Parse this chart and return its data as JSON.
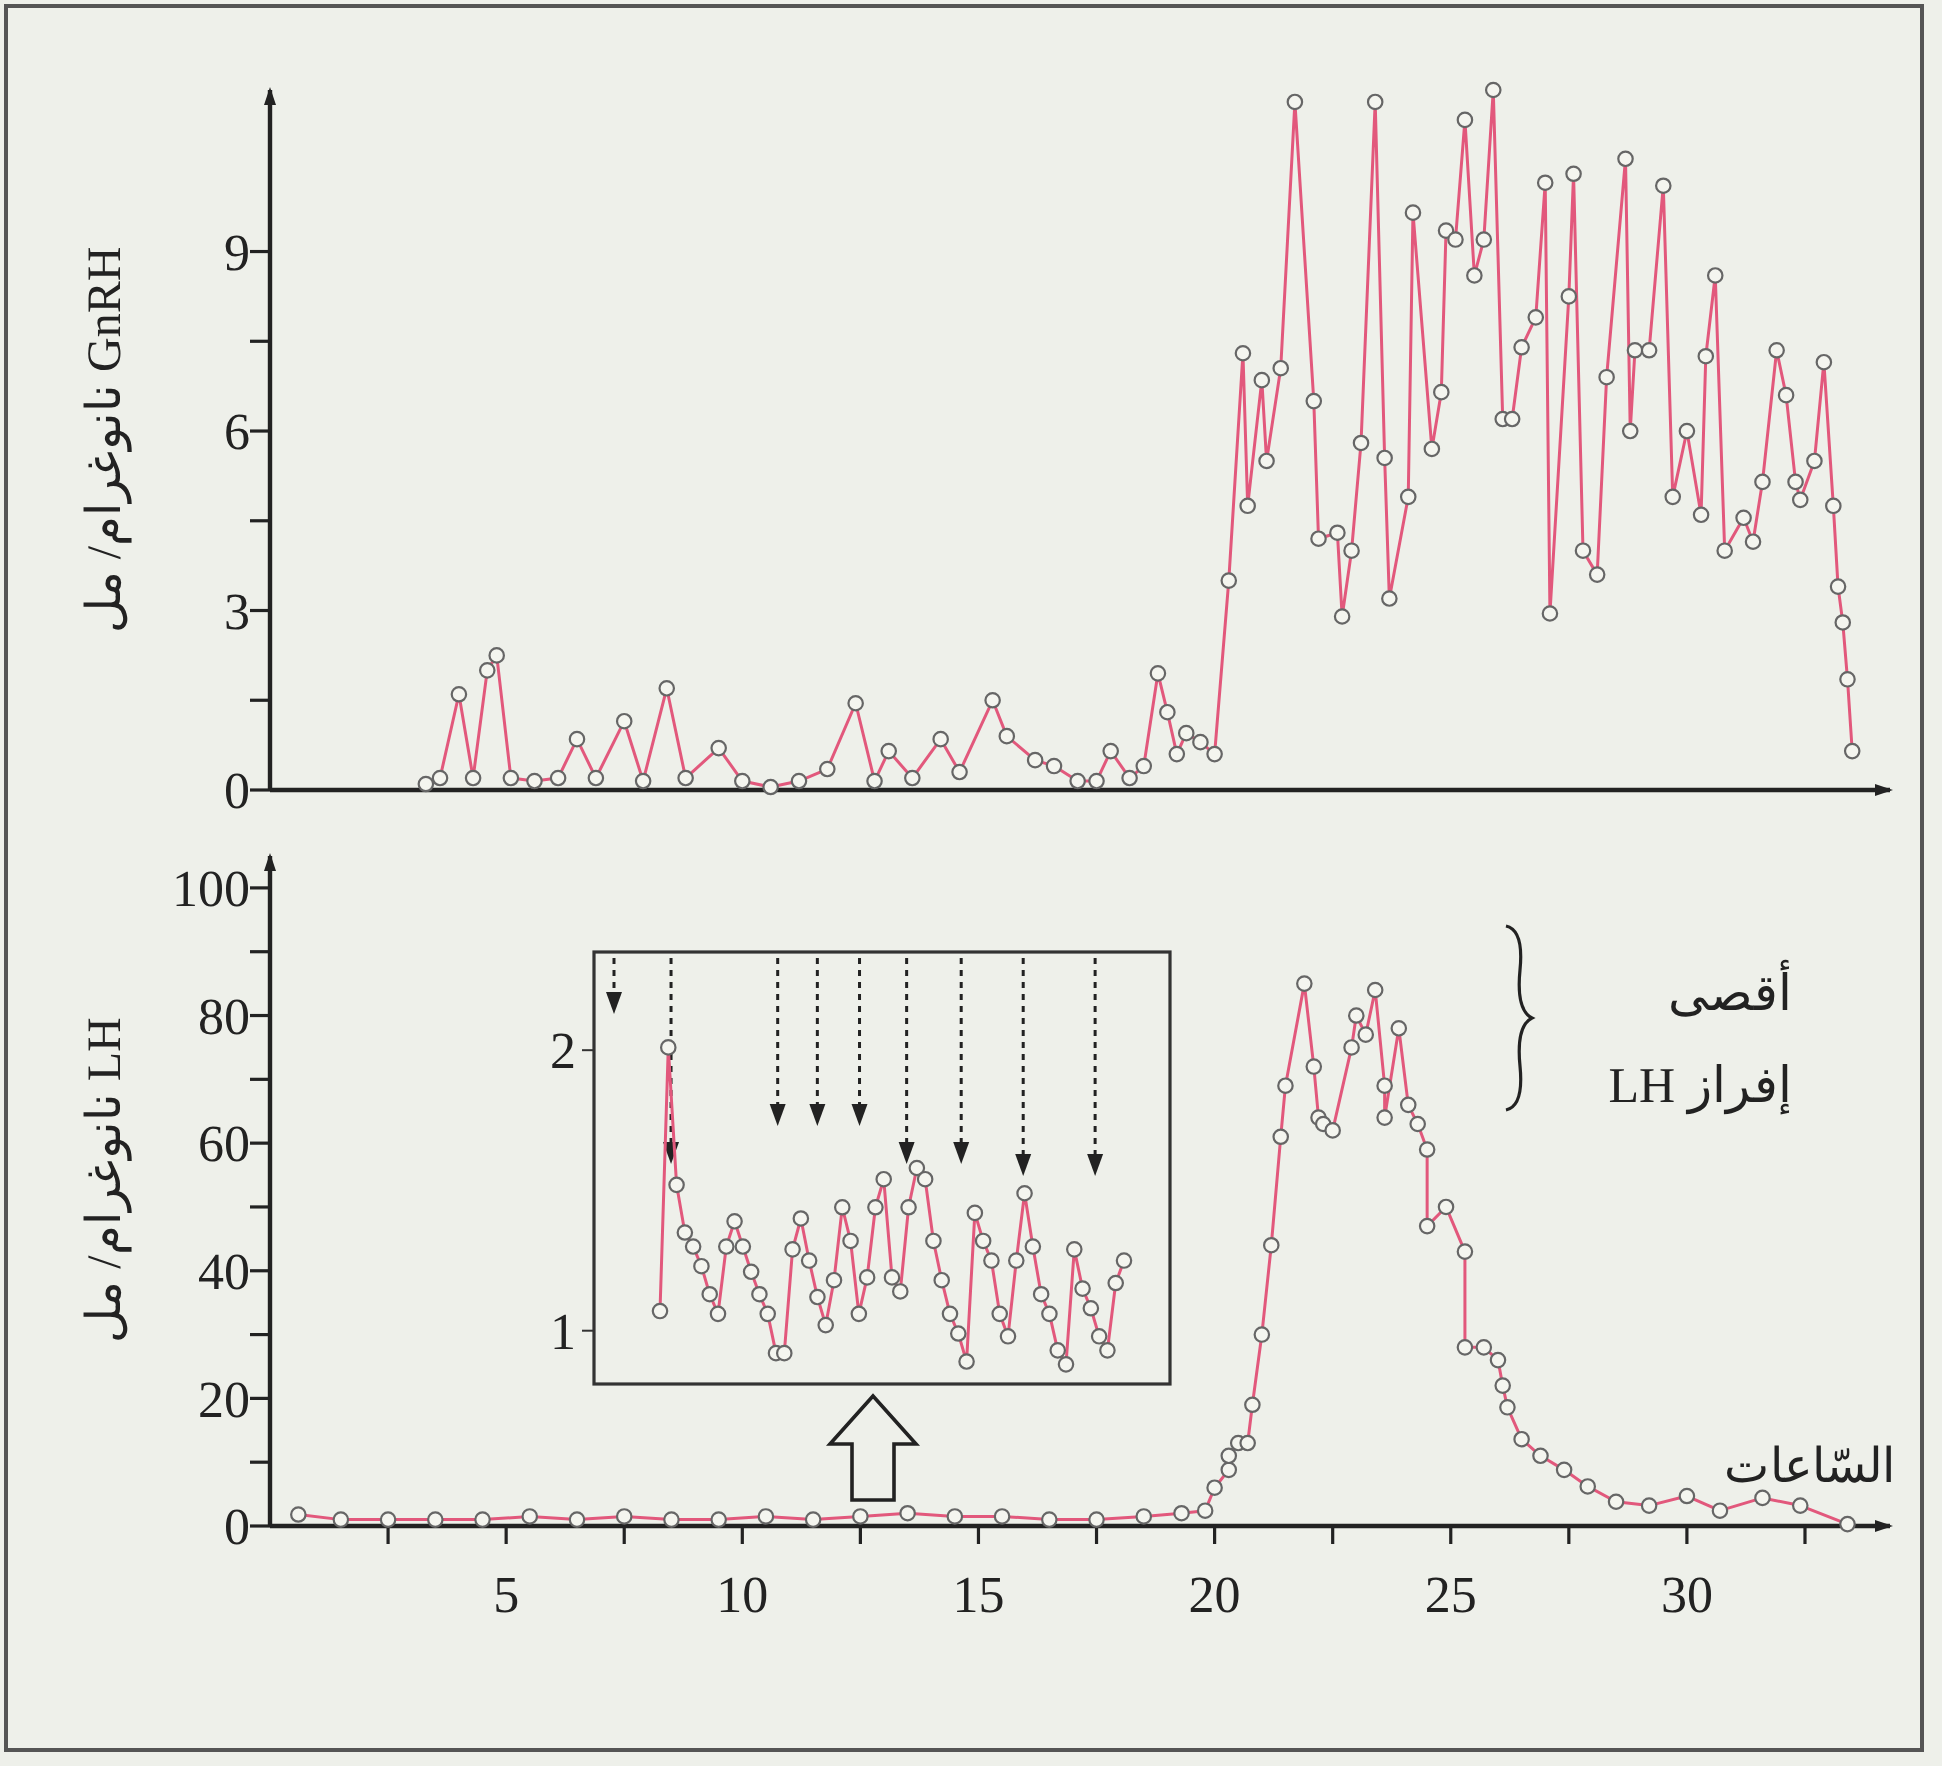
{
  "chart_data": [
    {
      "type": "line",
      "ylabel": "GnRH نانوغرام/ مل",
      "xlim": [
        0,
        34.3
      ],
      "ylim": [
        0,
        11.7
      ],
      "yticks": [
        0,
        {
          "value": 1.5,
          "label": null
        },
        3,
        {
          "value": 4.5,
          "label": null
        },
        6,
        {
          "value": 7.5,
          "label": null
        },
        9
      ],
      "tick_labels": "y",
      "marker": "circle",
      "x": [
        3.3,
        3.6,
        4.0,
        4.3,
        4.6,
        4.8,
        5.1,
        5.6,
        6.1,
        6.5,
        6.9,
        7.5,
        7.9,
        8.4,
        8.8,
        9.5,
        10.0,
        10.6,
        11.2,
        11.8,
        12.4,
        12.8,
        13.1,
        13.6,
        14.2,
        14.6,
        15.3,
        15.6,
        16.2,
        16.6,
        17.1,
        17.5,
        17.8,
        18.2,
        18.5,
        18.8,
        19.0,
        19.2,
        19.4,
        19.7,
        20.0,
        20.3,
        20.6,
        20.7,
        21.0,
        21.1,
        21.4,
        21.7,
        22.1,
        22.2,
        22.6,
        22.7,
        22.9,
        23.1,
        23.4,
        23.6,
        23.7,
        24.1,
        24.2,
        24.6,
        24.8,
        24.9,
        25.1,
        25.3,
        25.5,
        25.7,
        25.9,
        26.1,
        26.3,
        26.5,
        26.8,
        27.0,
        27.1,
        27.5,
        27.6,
        27.8,
        28.1,
        28.3,
        28.7,
        28.8,
        28.9,
        29.2,
        29.5,
        29.7,
        30.0,
        30.3,
        30.4,
        30.6,
        30.8,
        31.2,
        31.4,
        31.6,
        31.9,
        32.1,
        32.3,
        32.4,
        32.7,
        32.9,
        33.1,
        33.2,
        33.3,
        33.4,
        33.5
      ],
      "series": [
        {
          "color": "#e2587c",
          "values": [
            0.1,
            0.2,
            1.6,
            0.2,
            2.0,
            2.25,
            0.2,
            0.15,
            0.2,
            0.85,
            0.2,
            1.15,
            0.15,
            1.7,
            0.2,
            0.7,
            0.15,
            0.05,
            0.15,
            0.35,
            1.45,
            0.15,
            0.65,
            0.2,
            0.85,
            0.3,
            1.5,
            0.9,
            0.5,
            0.4,
            0.15,
            0.15,
            0.65,
            0.2,
            0.4,
            1.95,
            1.3,
            0.6,
            0.95,
            0.8,
            0.6,
            3.5,
            7.3,
            4.75,
            6.85,
            5.5,
            7.05,
            11.5,
            6.5,
            4.2,
            4.3,
            2.9,
            4.0,
            5.8,
            11.5,
            5.55,
            3.2,
            4.9,
            9.65,
            5.7,
            6.65,
            9.35,
            9.2,
            11.2,
            8.6,
            9.2,
            11.7,
            6.2,
            6.2,
            7.4,
            7.9,
            10.15,
            2.95,
            8.25,
            10.3,
            4.0,
            3.6,
            6.9,
            10.55,
            6.0,
            7.35,
            7.35,
            10.1,
            4.9,
            6.0,
            4.6,
            7.25,
            8.6,
            4.0,
            4.55,
            4.15,
            5.15,
            7.35,
            6.6,
            5.15,
            4.85,
            5.5,
            7.15,
            4.75,
            3.4,
            2.8,
            1.85,
            0.65
          ]
        }
      ]
    },
    {
      "type": "line",
      "xlabel": "السّاعات",
      "ylabel": "LH نانوغرام/ مل",
      "annotations": [
        "أقصى إفراز LH"
      ],
      "xlim": [
        0,
        34.3
      ],
      "ylim": [
        0,
        105
      ],
      "xticks": [
        {
          "value": 2.5,
          "label": null
        },
        5,
        {
          "value": 7.5,
          "label": null
        },
        10,
        {
          "value": 12.5,
          "label": null
        },
        15,
        {
          "value": 17.5,
          "label": null
        },
        20,
        {
          "value": 22.5,
          "label": null
        },
        25,
        {
          "value": 27.5,
          "label": null
        },
        30,
        {
          "value": 32.5,
          "label": null
        }
      ],
      "yticks": [
        0,
        {
          "value": 10,
          "label": null
        },
        20,
        {
          "value": 30,
          "label": null
        },
        40,
        {
          "value": 50,
          "label": null
        },
        60,
        {
          "value": 70,
          "label": null
        },
        80,
        {
          "value": 90,
          "label": null
        },
        100
      ],
      "marker": "circle",
      "x": [
        0.6,
        1.5,
        2.5,
        3.5,
        4.5,
        5.5,
        6.5,
        7.5,
        8.5,
        9.5,
        10.5,
        11.5,
        12.5,
        13.5,
        14.5,
        15.5,
        16.5,
        17.5,
        18.5,
        19.3,
        19.8,
        20.0,
        20.3,
        20.3,
        20.5,
        20.7,
        20.8,
        21.0,
        21.2,
        21.4,
        21.5,
        21.9,
        22.1,
        22.2,
        22.3,
        22.5,
        22.9,
        23.0,
        23.2,
        23.4,
        23.6,
        23.6,
        23.9,
        24.1,
        24.3,
        24.5,
        24.5,
        24.9,
        25.3,
        25.3,
        25.7,
        26.0,
        26.1,
        26.2,
        26.5,
        26.9,
        27.4,
        27.9,
        28.5,
        29.2,
        30.0,
        30.7,
        31.6,
        32.4,
        33.4
      ],
      "series": [
        {
          "color": "#e2587c",
          "values": [
            1.8,
            1,
            1,
            1,
            1,
            1.5,
            1,
            1.5,
            1,
            1,
            1.5,
            1,
            1.5,
            2,
            1.5,
            1.5,
            1,
            1,
            1.5,
            2,
            2.4,
            6,
            8.8,
            11,
            13,
            13,
            19,
            30,
            44,
            61,
            69,
            85,
            72,
            64,
            63,
            62,
            75,
            80,
            77,
            84,
            69,
            64,
            78,
            66,
            63,
            59,
            47,
            50,
            43,
            28,
            28,
            26,
            22,
            18.6,
            13.6,
            11,
            8.8,
            6.2,
            3.8,
            3.2,
            4.7,
            2.4,
            4.4,
            3.2,
            0.3
          ]
        }
      ]
    },
    {
      "type": "line",
      "categories": [
        null,
        null,
        null,
        null,
        null,
        null,
        null,
        null,
        null,
        null,
        null,
        null,
        null,
        null,
        null,
        null,
        null,
        null,
        null,
        null,
        null,
        null,
        null,
        null,
        null,
        null,
        null,
        null,
        null,
        null,
        null,
        null,
        null,
        null,
        null,
        null,
        null,
        null,
        null,
        null,
        null,
        null,
        null,
        null,
        null,
        null,
        null,
        null,
        null,
        null,
        null,
        null,
        null,
        null,
        null,
        null,
        null
      ],
      "ylim": [
        0.81,
        2.35
      ],
      "yticks": [
        1,
        2
      ],
      "tick_labels": "y",
      "marker": "circle",
      "series": [
        {
          "color": "#e2587c",
          "values": [
            1.07,
            2.01,
            1.52,
            1.35,
            1.3,
            1.23,
            1.13,
            1.06,
            1.3,
            1.39,
            1.3,
            1.21,
            1.13,
            1.06,
            0.92,
            0.92,
            1.29,
            1.4,
            1.25,
            1.12,
            1.02,
            1.18,
            1.44,
            1.32,
            1.06,
            1.19,
            1.44,
            1.54,
            1.19,
            1.14,
            1.44,
            1.58,
            1.54,
            1.32,
            1.18,
            1.06,
            0.99,
            0.89,
            1.42,
            1.32,
            1.25,
            1.06,
            0.98,
            1.25,
            1.49,
            1.3,
            1.13,
            1.06,
            0.93,
            0.88,
            1.29,
            1.15,
            1.08,
            0.98,
            0.93,
            1.17,
            1.25
          ]
        }
      ]
    }
  ]
}
